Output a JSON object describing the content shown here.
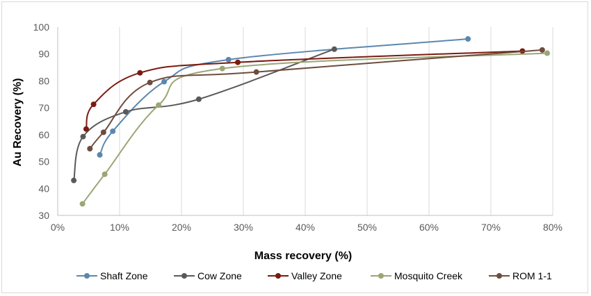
{
  "chart_data": {
    "type": "scatter",
    "title": "",
    "xlabel": "Mass recovery (%)",
    "ylabel": "Au Recovery (%)",
    "xlim": [
      0,
      80
    ],
    "ylim": [
      30,
      100
    ],
    "x_ticks": [
      0,
      10,
      20,
      30,
      40,
      50,
      60,
      70,
      80
    ],
    "x_tick_labels": [
      "0%",
      "10%",
      "20%",
      "30%",
      "40%",
      "50%",
      "60%",
      "70%",
      "80%"
    ],
    "y_ticks": [
      30,
      40,
      50,
      60,
      70,
      80,
      90,
      100
    ],
    "y_tick_labels": [
      "30",
      "40",
      "50",
      "60",
      "70",
      "80",
      "90",
      "100"
    ],
    "grid": "vertical",
    "legend_position": "bottom",
    "series": [
      {
        "name": "Shaft Zone",
        "color": "#5B87AE",
        "x": [
          6.8,
          8.9,
          17.2,
          27.6,
          66.3
        ],
        "y": [
          52.5,
          61.3,
          79.7,
          87.9,
          95.6
        ]
      },
      {
        "name": "Cow Zone",
        "color": "#595959",
        "x": [
          2.6,
          4.1,
          11.0,
          22.8,
          44.7
        ],
        "y": [
          43.0,
          59.3,
          68.5,
          73.2,
          91.8
        ]
      },
      {
        "name": "Valley Zone",
        "color": "#7B1A10",
        "x": [
          4.6,
          5.8,
          13.3,
          29.1,
          75.1
        ],
        "y": [
          62.1,
          71.3,
          83.0,
          86.9,
          91.1
        ]
      },
      {
        "name": "Mosquito Creek",
        "color": "#9AA675",
        "x": [
          4.0,
          7.6,
          16.3,
          26.6,
          79.1
        ],
        "y": [
          34.3,
          45.3,
          71.0,
          84.6,
          90.3
        ]
      },
      {
        "name": "ROM 1-1",
        "color": "#6E4D3E",
        "x": [
          5.2,
          7.4,
          14.9,
          32.1,
          78.3
        ],
        "y": [
          54.8,
          60.9,
          79.4,
          83.3,
          91.5
        ]
      }
    ]
  }
}
